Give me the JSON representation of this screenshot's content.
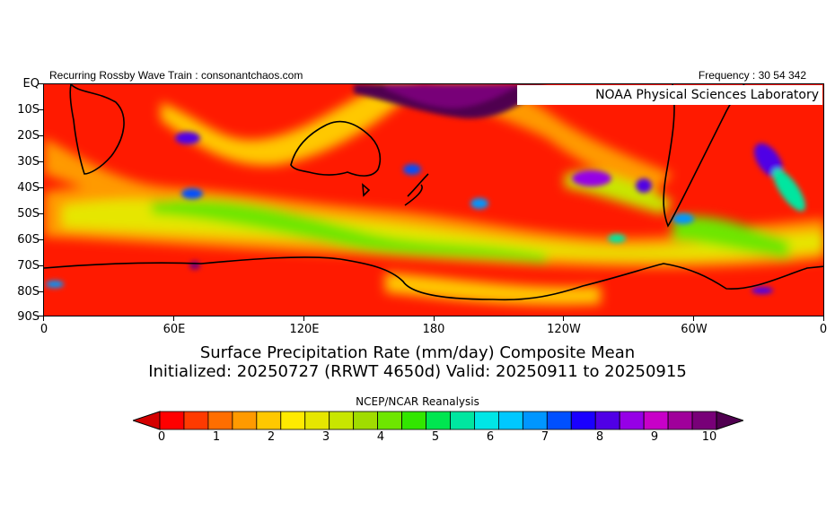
{
  "header": {
    "left": "Recurring Rossby Wave Train : consonantchaos.com",
    "right": "Frequency : 30 54 342"
  },
  "map": {
    "credit": "NOAA Physical Sciences Laboratory",
    "lat_labels": [
      "EQ",
      "10S",
      "20S",
      "30S",
      "40S",
      "50S",
      "60S",
      "70S",
      "80S",
      "90S"
    ],
    "lon_labels": [
      "0",
      "60E",
      "120E",
      "180",
      "120W",
      "60W",
      "0"
    ],
    "lat_range": [
      0,
      -90
    ],
    "lon_range": [
      0,
      360
    ]
  },
  "title": {
    "line1": "Surface Precipitation Rate (mm/day) Composite Mean",
    "line2": "Initialized: 20250727 (RRWT 4650d) Valid: 20250911 to 20250915"
  },
  "source": "NCEP/NCAR Reanalysis",
  "colorbar": {
    "labels": [
      "0",
      "1",
      "2",
      "3",
      "4",
      "5",
      "6",
      "7",
      "8",
      "9",
      "10"
    ],
    "colors": [
      "#d40000",
      "#ff0000",
      "#ff3a00",
      "#ff6e00",
      "#ff9a00",
      "#ffc800",
      "#ffea00",
      "#e6e600",
      "#c8e600",
      "#a0dc00",
      "#6ee600",
      "#32e600",
      "#00e650",
      "#00e6a0",
      "#00e6e6",
      "#00c8ff",
      "#0096ff",
      "#0050ff",
      "#1a00ff",
      "#5000e6",
      "#9600e6",
      "#c800c8",
      "#a0009b",
      "#780078",
      "#500050"
    ]
  }
}
